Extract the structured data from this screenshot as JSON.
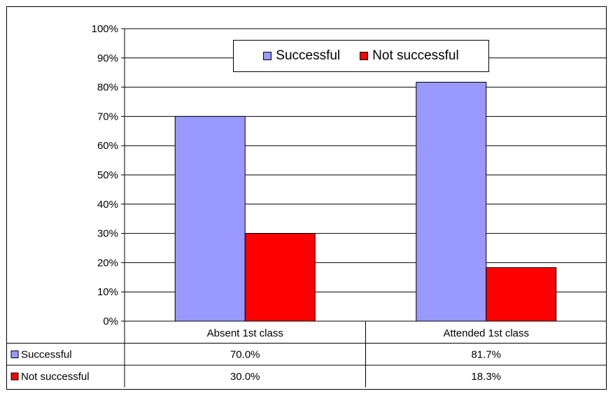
{
  "chart_data": {
    "type": "bar",
    "title": "",
    "xlabel": "",
    "ylabel": "",
    "categories": [
      "Absent 1st class",
      "Attended 1st class"
    ],
    "series": [
      {
        "name": "Successful",
        "values": [
          70.0,
          81.7
        ],
        "color": "#9999ff"
      },
      {
        "name": "Not successful",
        "values": [
          30.0,
          18.3
        ],
        "color": "#ff0000"
      }
    ],
    "ylim": [
      0,
      100
    ],
    "yticks": [
      "0%",
      "10%",
      "20%",
      "30%",
      "40%",
      "50%",
      "60%",
      "70%",
      "80%",
      "90%",
      "100%"
    ],
    "grid": true,
    "legend_position": "top-center",
    "data_table": {
      "rows": [
        {
          "label": "Successful",
          "values": [
            "70.0%",
            "81.7%"
          ]
        },
        {
          "label": "Not successful",
          "values": [
            "30.0%",
            "18.3%"
          ]
        }
      ]
    }
  }
}
